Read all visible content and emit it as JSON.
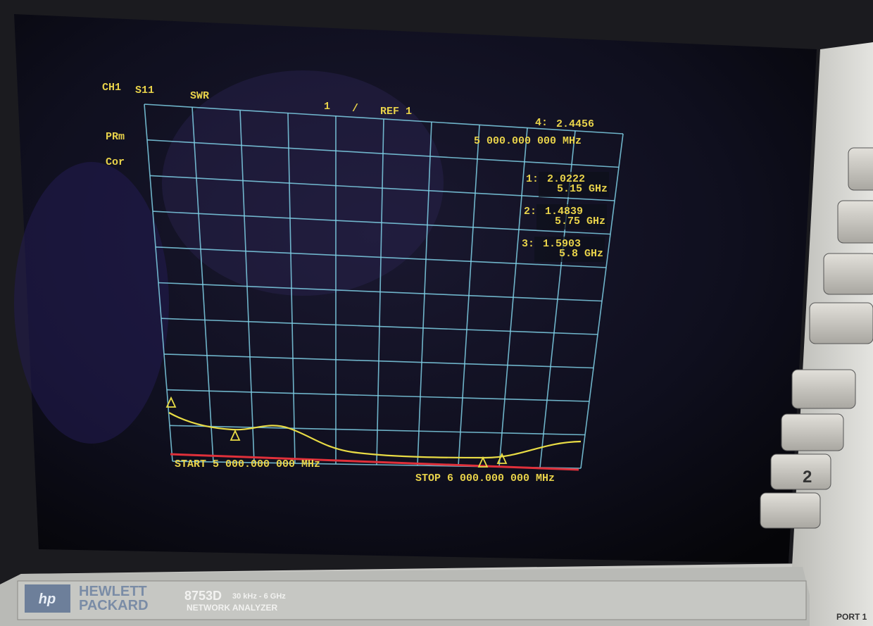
{
  "screen": {
    "channel": "CH1",
    "parameter": "S11",
    "format": "SWR",
    "scale": "1",
    "scale_unit": "/",
    "ref": "REF 1",
    "annotations": [
      "PRm",
      "Cor"
    ],
    "active_marker": {
      "label": "4:",
      "value": "2.4456",
      "stimulus": "5 000.000 000 MHz"
    },
    "markers": [
      {
        "label": "1:",
        "value": "2.0222",
        "stimulus": "5.15 GHz"
      },
      {
        "label": "2:",
        "value": "1.4839",
        "stimulus": "5.75 GHz"
      },
      {
        "label": "3:",
        "value": "1.5903",
        "stimulus": "5.8 GHz"
      }
    ],
    "start": "START 5 000.000 000 MHz",
    "stop": "STOP 6 000.000 000 MHz"
  },
  "bezel": {
    "logo": "hp",
    "brand_line1": "HEWLETT",
    "brand_line2": "PACKARD",
    "model": "8753D",
    "range": "30 kHz - 6 GHz",
    "product": "NETWORK ANALYZER",
    "port": "PORT 1",
    "button_note": "2"
  }
}
